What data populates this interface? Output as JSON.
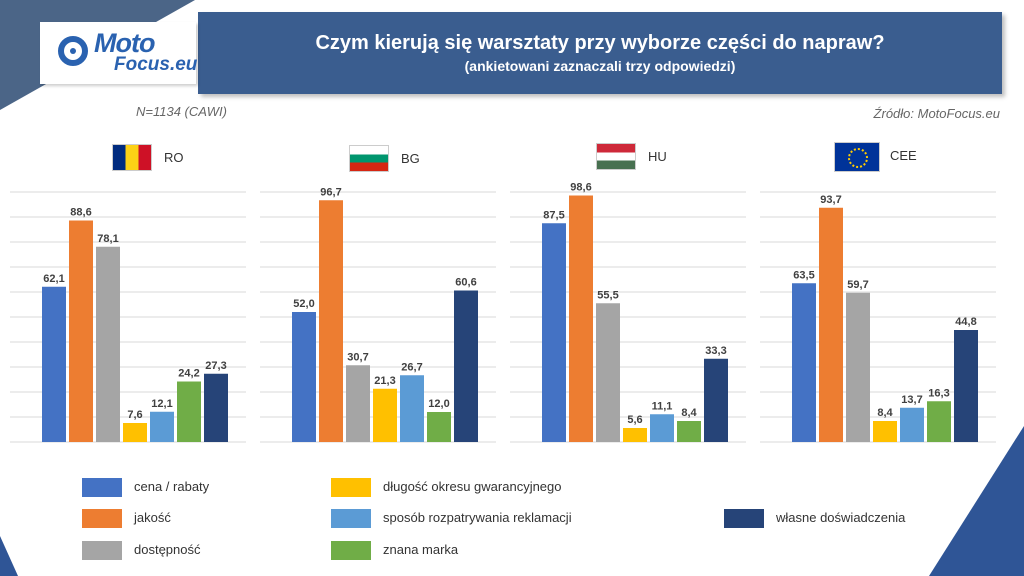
{
  "header": {
    "title": "Czym kierują się warsztaty przy wyborze części do napraw?",
    "subtitle": "(ankietowani zaznaczali trzy odpowiedzi)"
  },
  "logo": {
    "moto": "Moto",
    "focus": "Focus.eu"
  },
  "notes": {
    "sample": "N=1134 (CAWI)",
    "source": "Źródło: MotoFocus.eu"
  },
  "colors": {
    "header": "#3a5d8f",
    "cena": "#4472c4",
    "jakosc": "#ed7d31",
    "dostepnosc": "#a5a5a5",
    "gwarancja": "#ffc000",
    "reklamacje": "#5b9bd5",
    "marka": "#70ad47",
    "doswiadczenia": "#264478"
  },
  "chart_data": [
    {
      "type": "bar",
      "title": "RO",
      "flag": "flag-ro",
      "ylim": [
        0,
        100
      ],
      "categories": [
        "cena / rabaty",
        "jakość",
        "dostępność",
        "długość okresu gwarancyjnego",
        "sposób rozpatrywania reklamacji",
        "znana marka",
        "własne doświadczenia"
      ],
      "values": [
        62.1,
        88.6,
        78.1,
        7.6,
        12.1,
        24.2,
        27.3
      ],
      "labels": [
        "62,1",
        "88,6",
        "78,1",
        "7,6",
        "12,1",
        "24,2",
        "27,3"
      ]
    },
    {
      "type": "bar",
      "title": "BG",
      "flag": "flag-bg",
      "ylim": [
        0,
        100
      ],
      "categories": [
        "cena / rabaty",
        "jakość",
        "dostępność",
        "długość okresu gwarancyjnego",
        "sposób rozpatrywania reklamacji",
        "znana marka",
        "własne doświadczenia"
      ],
      "values": [
        52.0,
        96.7,
        30.7,
        21.3,
        26.7,
        12.0,
        60.6
      ],
      "labels": [
        "52,0",
        "96,7",
        "30,7",
        "21,3",
        "26,7",
        "12,0",
        "60,6"
      ]
    },
    {
      "type": "bar",
      "title": "HU",
      "flag": "flag-hu",
      "ylim": [
        0,
        100
      ],
      "categories": [
        "cena / rabaty",
        "jakość",
        "dostępność",
        "długość okresu gwarancyjnego",
        "sposób rozpatrywania reklamacji",
        "znana marka",
        "własne doświadczenia"
      ],
      "values": [
        87.5,
        98.6,
        55.5,
        5.6,
        11.1,
        8.4,
        33.3
      ],
      "labels": [
        "87,5",
        "98,6",
        "55,5",
        "5,6",
        "11,1",
        "8,4",
        "33,3"
      ]
    },
    {
      "type": "bar",
      "title": "CEE",
      "flag": "flag-eu",
      "ylim": [
        0,
        100
      ],
      "categories": [
        "cena / rabaty",
        "jakość",
        "dostępność",
        "długość okresu gwarancyjnego",
        "sposób rozpatrywania reklamacji",
        "znana marka",
        "własne doświadczenia"
      ],
      "values": [
        63.5,
        93.7,
        59.7,
        8.4,
        13.7,
        16.3,
        44.8
      ],
      "labels": [
        "63,5",
        "93,7",
        "59,7",
        "8,4",
        "13,7",
        "16,3",
        "44,8"
      ]
    }
  ],
  "legend": {
    "cena": "cena / rabaty",
    "jakosc": "jakość",
    "dostepnosc": "dostępność",
    "gwarancja": "długość okresu gwarancyjnego",
    "reklamacje": "sposób rozpatrywania reklamacji",
    "marka": "znana marka",
    "doswiadczenia": "własne doświadczenia"
  }
}
